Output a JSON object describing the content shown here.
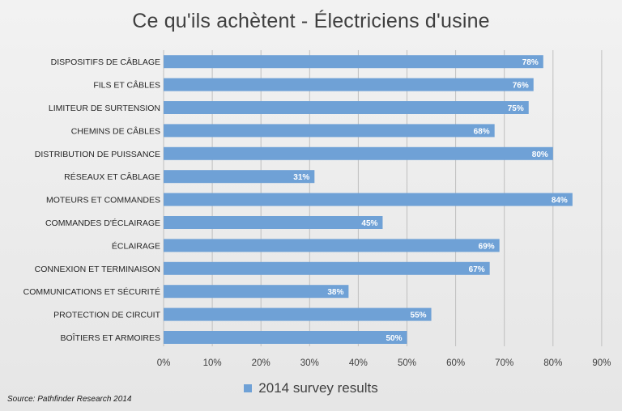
{
  "chart_data": {
    "type": "bar",
    "orientation": "horizontal",
    "title": "Ce qu'ils achètent - Électriciens d'usine",
    "categories": [
      "DISPOSITIFS DE CÂBLAGE",
      "FILS ET CÂBLES",
      "LIMITEUR DE SURTENSION",
      "CHEMINS DE CÂBLES",
      "DISTRIBUTION DE PUISSANCE",
      "RÉSEAUX ET CÂBLAGE",
      "MOTEURS ET COMMANDES",
      "COMMANDES D'ÉCLAIRAGE",
      "ÉCLAIRAGE",
      "CONNEXION ET TERMINAISON",
      "COMMUNICATIONS ET SÉCURITÉ",
      "PROTECTION DE CIRCUIT",
      "BOÎTIERS ET ARMOIRES"
    ],
    "series": [
      {
        "name": "2014 survey results",
        "values": [
          78,
          76,
          75,
          68,
          80,
          31,
          84,
          45,
          69,
          67,
          38,
          55,
          50
        ],
        "labels": [
          "78%",
          "76%",
          "75%",
          "68%",
          "80%",
          "31%",
          "84%",
          "45%",
          "69%",
          "67%",
          "38%",
          "55%",
          "50%"
        ]
      }
    ],
    "xlim": [
      0,
      90
    ],
    "xticks": [
      0,
      10,
      20,
      30,
      40,
      50,
      60,
      70,
      80,
      90
    ],
    "xtick_labels": [
      "0%",
      "10%",
      "20%",
      "30%",
      "40%",
      "50%",
      "60%",
      "70%",
      "80%",
      "90%"
    ],
    "grid": "vertical",
    "legend": "bottom",
    "colors": {
      "bar": "#6fa1d6",
      "grid": "#bfbfbf",
      "background": "#ececec"
    },
    "source": "Source:  Pathfinder Research 2014"
  }
}
